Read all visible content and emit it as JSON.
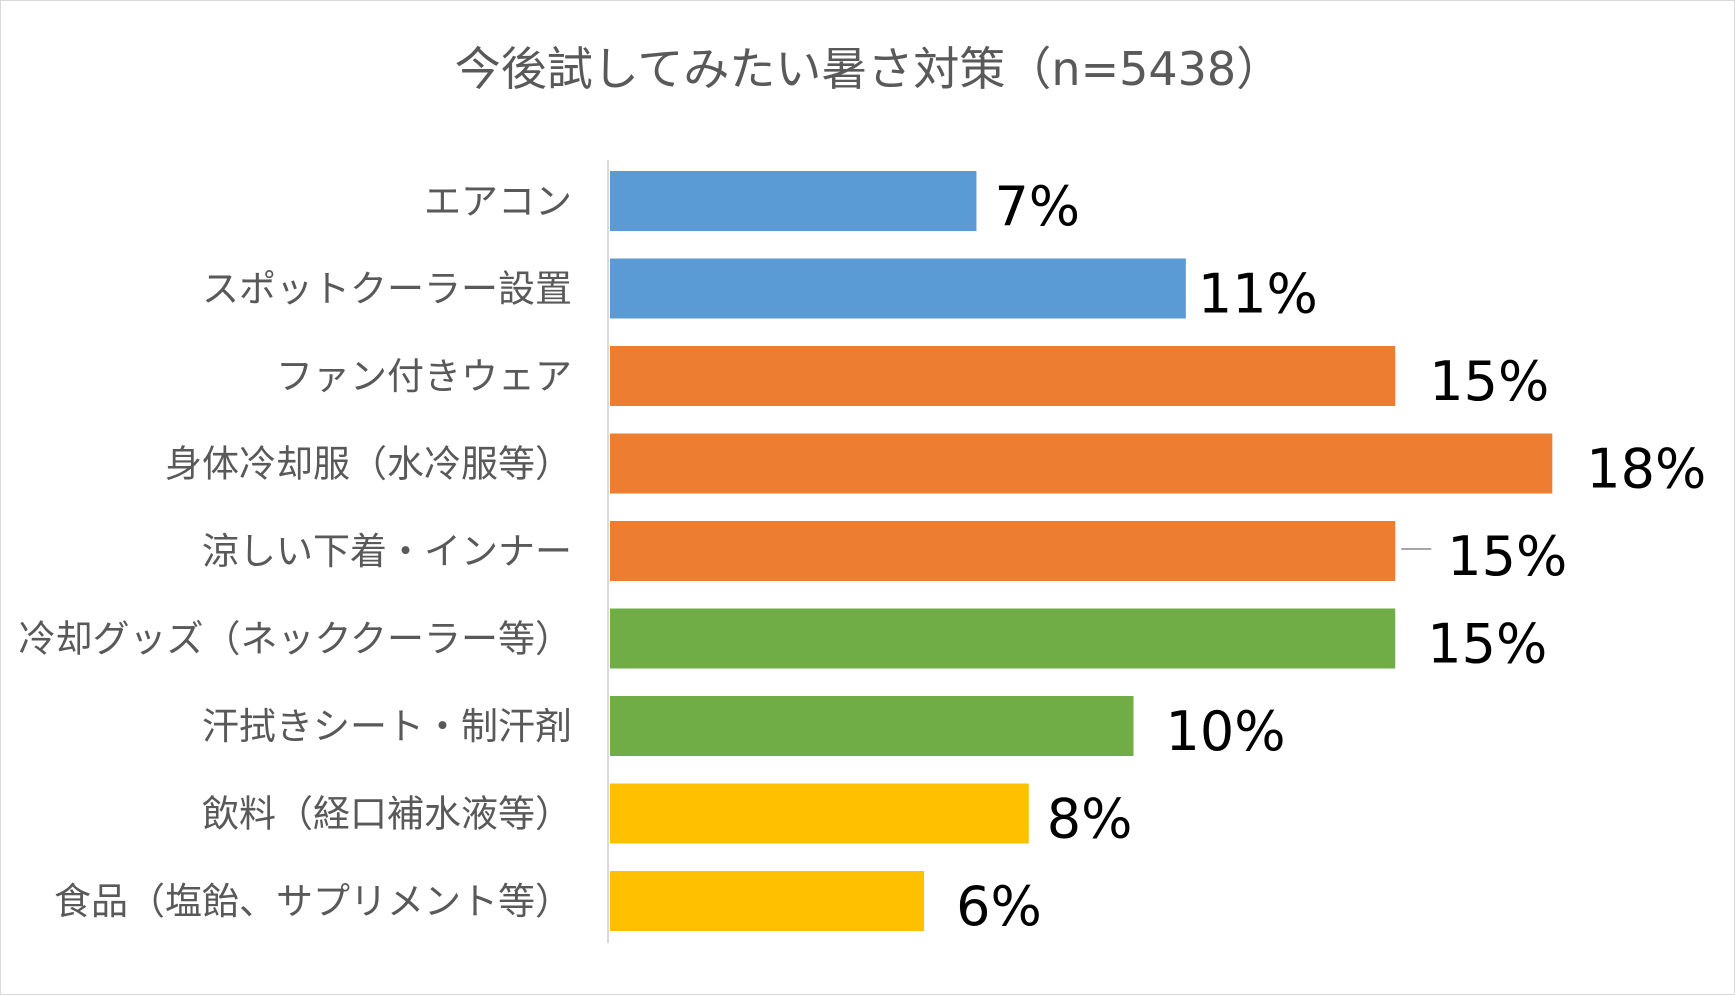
{
  "chart_data": {
    "type": "bar",
    "orientation": "horizontal",
    "title": "今後試してみたい暑さ対策（n=5438）",
    "categories": [
      "エアコン",
      "スポットクーラー設置",
      "ファン付きウェア",
      "身体冷却服（水冷服等）",
      "涼しい下着・インナー",
      "冷却グッズ（ネッククーラー等）",
      "汗拭きシート・制汗剤",
      "飲料（経口補水液等）",
      "食品（塩飴、サプリメント等）"
    ],
    "values": [
      7,
      11,
      15,
      18,
      15,
      15,
      10,
      8,
      6
    ],
    "value_labels": [
      "7%",
      "11%",
      "15%",
      "18%",
      "15%",
      "15%",
      "10%",
      "8%",
      "6%"
    ],
    "bar_colors": [
      "#5b9bd5",
      "#5b9bd5",
      "#ed7d31",
      "#ed7d31",
      "#ed7d31",
      "#70ad47",
      "#70ad47",
      "#ffc000",
      "#ffc000"
    ],
    "unit": "%",
    "grid": false,
    "legend": "none"
  }
}
